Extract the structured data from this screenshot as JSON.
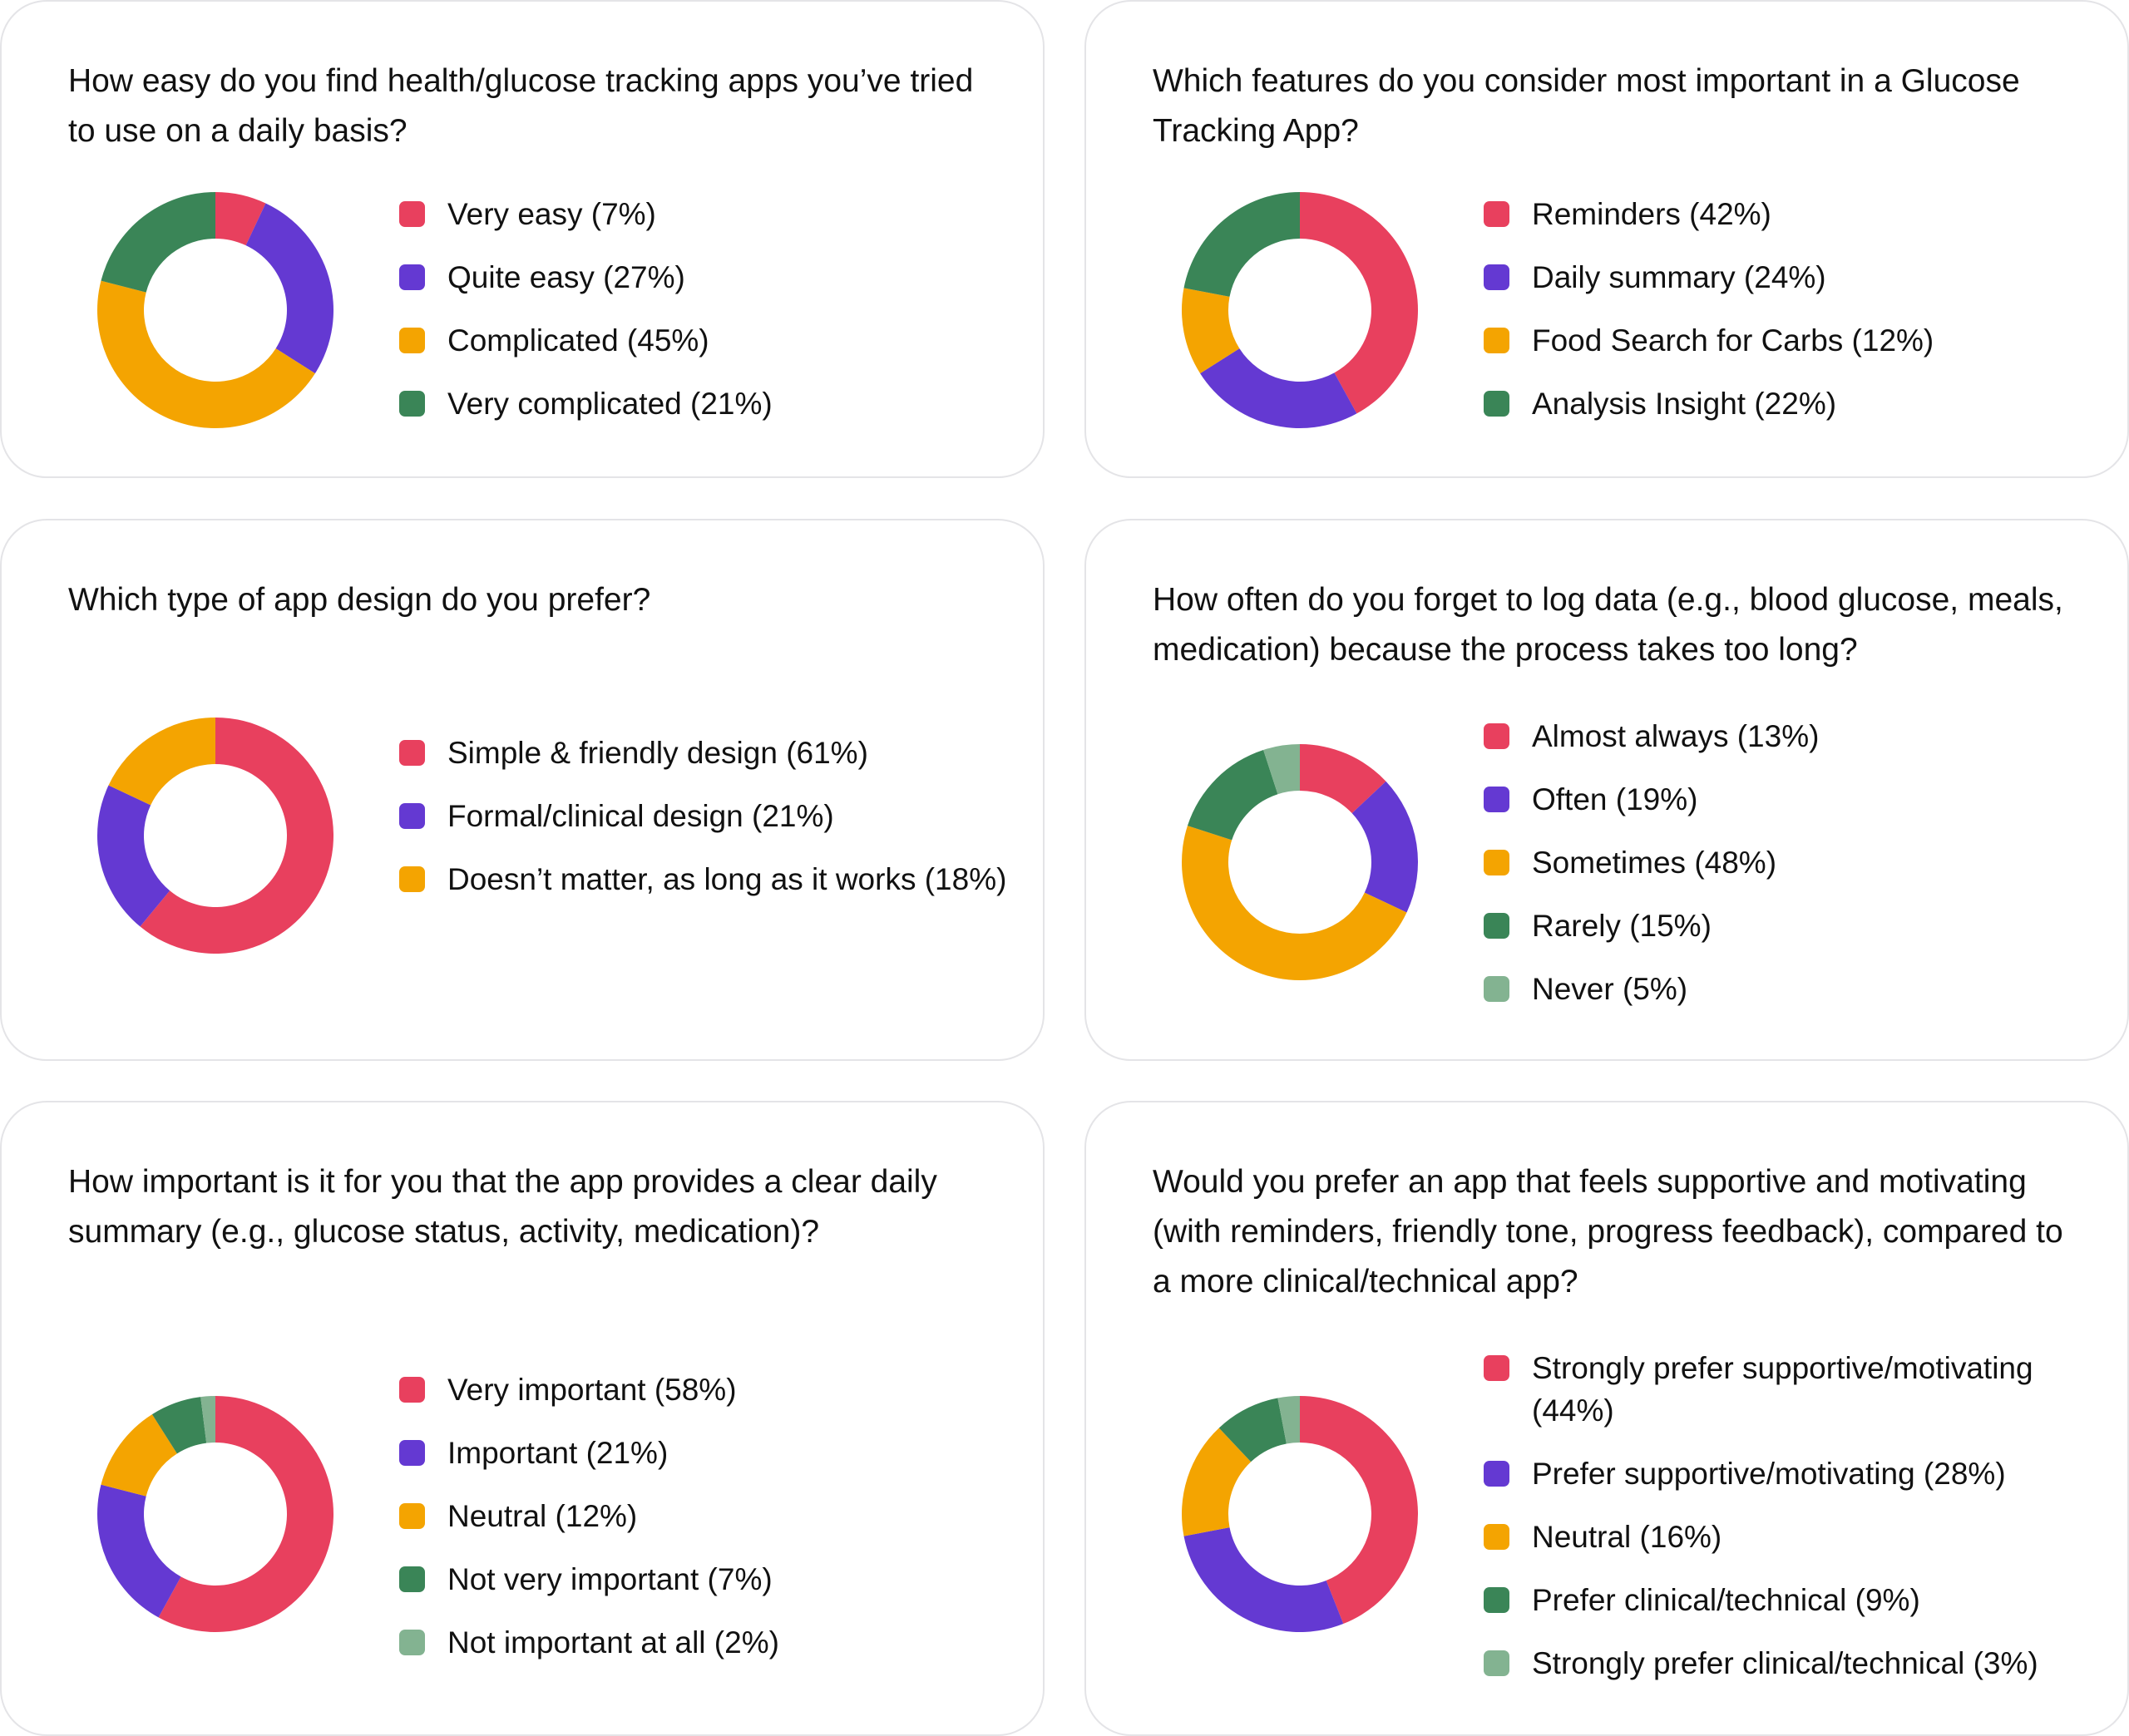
{
  "colors": {
    "red": "#e8405e",
    "purple": "#6439d2",
    "orange": "#f4a401",
    "green": "#3a8557",
    "lightgreen": "#83b391"
  },
  "chart_data": [
    {
      "type": "pie",
      "title": "How easy do you find health/glucose tracking apps you’ve tried to use on a daily basis?",
      "categories": [
        "Very easy (7%)",
        "Quite easy (27%)",
        "Complicated (45%)",
        "Very complicated (21%)"
      ],
      "values": [
        7,
        27,
        45,
        21
      ],
      "colors": [
        "#e8405e",
        "#6439d2",
        "#f4a401",
        "#3a8557"
      ]
    },
    {
      "type": "pie",
      "title": "Which features do you consider most important in a Glucose Tracking App?",
      "categories": [
        "Reminders (42%)",
        "Daily summary (24%)",
        "Food Search for Carbs (12%)",
        "Analysis Insight (22%)"
      ],
      "values": [
        42,
        24,
        12,
        22
      ],
      "colors": [
        "#e8405e",
        "#6439d2",
        "#f4a401",
        "#3a8557"
      ]
    },
    {
      "type": "pie",
      "title": "Which type of app design do you prefer?",
      "categories": [
        "Simple & friendly design (61%)",
        "Formal/clinical design (21%)",
        "Doesn’t matter, as long as it works (18%)"
      ],
      "values": [
        61,
        21,
        18
      ],
      "colors": [
        "#e8405e",
        "#6439d2",
        "#f4a401"
      ]
    },
    {
      "type": "pie",
      "title": "How often do you forget to log data (e.g., blood glucose, meals, medication) because the process takes too long?",
      "categories": [
        "Almost always (13%)",
        "Often (19%)",
        "Sometimes (48%)",
        "Rarely (15%)",
        "Never (5%)"
      ],
      "values": [
        13,
        19,
        48,
        15,
        5
      ],
      "colors": [
        "#e8405e",
        "#6439d2",
        "#f4a401",
        "#3a8557",
        "#83b391"
      ]
    },
    {
      "type": "pie",
      "title": "How important is it for you that the app provides a clear daily summary (e.g., glucose status, activity, medication)?",
      "categories": [
        "Very important (58%)",
        "Important (21%)",
        "Neutral (12%)",
        "Not very important (7%)",
        "Not important at all (2%)"
      ],
      "values": [
        58,
        21,
        12,
        7,
        2
      ],
      "colors": [
        "#e8405e",
        "#6439d2",
        "#f4a401",
        "#3a8557",
        "#83b391"
      ]
    },
    {
      "type": "pie",
      "title": "Would you prefer an app that feels supportive and motivating (with reminders, friendly tone, progress feedback), compared to a more clinical/technical app?",
      "categories": [
        "Strongly prefer supportive/motivating (44%)",
        "Prefer supportive/motivating (28%)",
        "Neutral (16%)",
        "Prefer clinical/technical (9%)",
        "Strongly prefer clinical/technical (3%)"
      ],
      "values": [
        44,
        28,
        16,
        9,
        3
      ],
      "colors": [
        "#e8405e",
        "#6439d2",
        "#f4a401",
        "#3a8557",
        "#83b391"
      ]
    }
  ]
}
